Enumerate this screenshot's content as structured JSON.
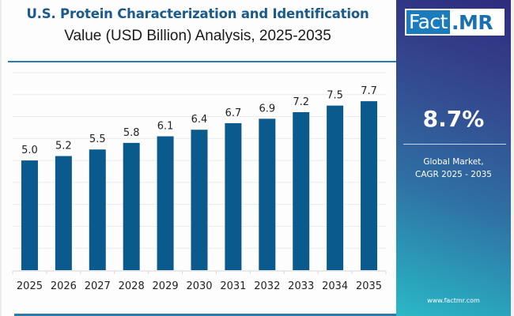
{
  "header": {
    "title": "U.S. Protein Characterization and Identification",
    "subtitle": "Value (USD Billion) Analysis, 2025-2035"
  },
  "brand": {
    "logo_primary": "Fact",
    "logo_secondary": ".MR",
    "website": "www.factmr.com"
  },
  "highlight": {
    "value": "8.7%",
    "label_line1": "Global Market,",
    "label_line2": "CAGR 2025 - 2035"
  },
  "colors": {
    "bar": "#0b5a8e",
    "title": "#1b5b8c",
    "gridline": "#ececec",
    "axis": "#d8d8d8"
  },
  "chart_data": {
    "type": "bar",
    "title": "U.S. Protein Characterization and Identification",
    "subtitle": "Value (USD Billion) Analysis, 2025-2035",
    "xlabel": "",
    "ylabel": "",
    "categories": [
      "2025",
      "2026",
      "2027",
      "2028",
      "2029",
      "2030",
      "2031",
      "2032",
      "2033",
      "2034",
      "2035"
    ],
    "values": [
      5.0,
      5.2,
      5.5,
      5.8,
      6.1,
      6.4,
      6.7,
      6.9,
      7.2,
      7.5,
      7.7
    ],
    "data_labels": [
      "5.0",
      "5.2",
      "5.5",
      "5.8",
      "6.1",
      "6.4",
      "6.7",
      "6.9",
      "7.2",
      "7.5",
      "7.7"
    ],
    "ylim": [
      0,
      9
    ],
    "y_axis_visible": false,
    "grid": true,
    "legend": "none"
  }
}
